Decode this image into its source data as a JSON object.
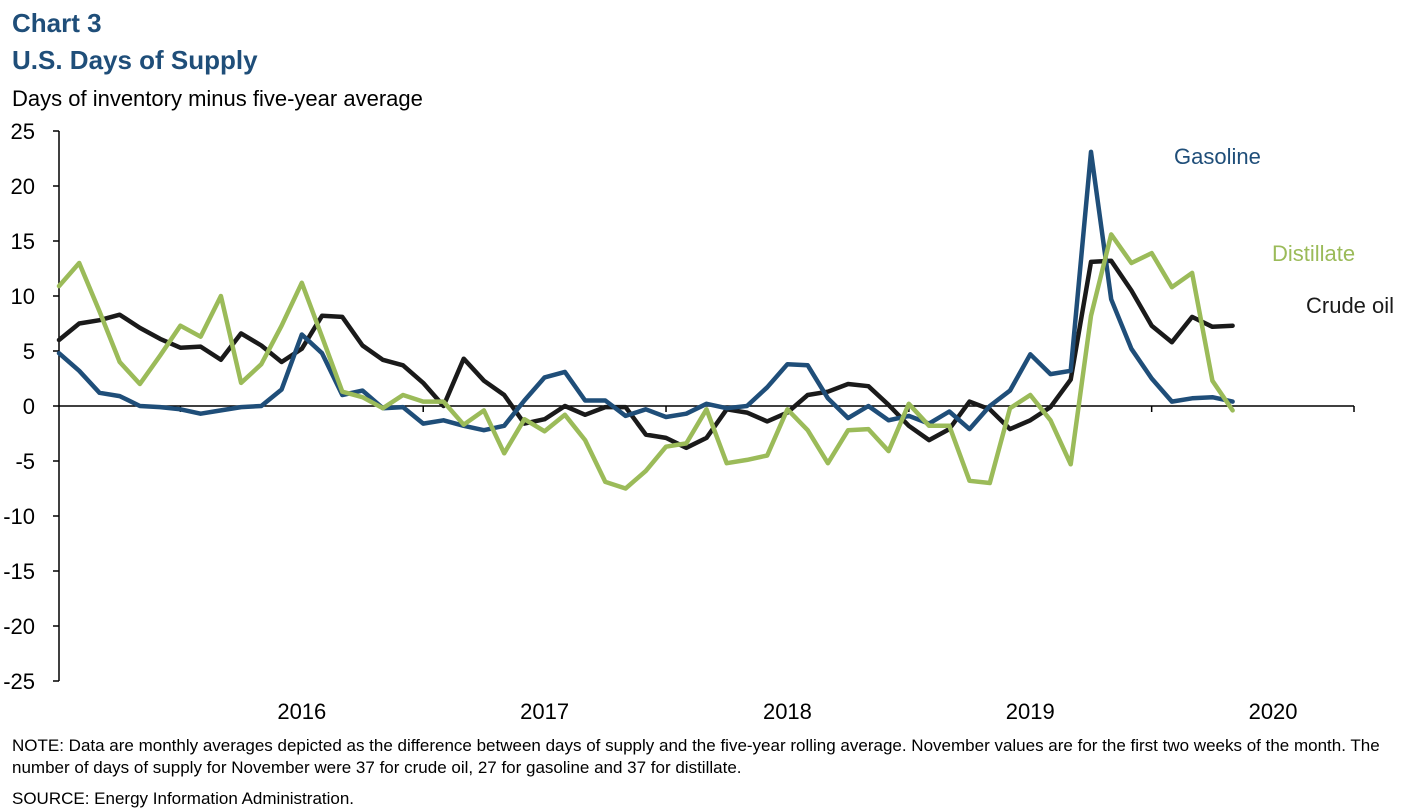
{
  "header": {
    "chart_number": "Chart 3",
    "title": "U.S. Days of Supply",
    "subtitle": "Days of inventory minus five-year average"
  },
  "footer": {
    "note": "NOTE: Data are monthly averages depicted as the difference between days of supply and the five-year rolling average. November values are for the first two weeks of the month. The number of days of supply for November were 37 for crude oil, 27 for gasoline and 37 for distillate.",
    "source": "SOURCE: Energy Information Administration."
  },
  "chart_data": {
    "type": "line",
    "title": "U.S. Days of Supply",
    "ylabel": "Days of inventory minus five-year average",
    "xlabel": "",
    "ylim": [
      -25,
      25
    ],
    "y_ticks": [
      25,
      20,
      15,
      10,
      5,
      0,
      -5,
      -10,
      -15,
      -20,
      -25
    ],
    "y_tick_labels": [
      "25",
      "20",
      "15",
      "10",
      "5",
      "0",
      "-5",
      "-10",
      "-15",
      "-20",
      "-25"
    ],
    "x_start": "2015-07",
    "x_end": "2020-11",
    "year_labels": [
      "2016",
      "2017",
      "2018",
      "2019",
      "2020"
    ],
    "grid": false,
    "series": [
      {
        "name": "Crude oil",
        "label": "Crude oil",
        "color": "#1a1a1a",
        "values": [
          6.0,
          7.5,
          7.8,
          8.3,
          7.1,
          6.1,
          5.3,
          5.4,
          4.2,
          6.6,
          5.5,
          4.0,
          5.2,
          8.2,
          8.1,
          5.5,
          4.2,
          3.7,
          2.1,
          0.0,
          4.3,
          2.3,
          1.0,
          -1.6,
          -1.2,
          0.0,
          -0.8,
          -0.1,
          -0.1,
          -2.6,
          -2.9,
          -3.8,
          -2.9,
          -0.3,
          -0.6,
          -1.4,
          -0.6,
          1.0,
          1.3,
          2.0,
          1.8,
          0.1,
          -1.8,
          -3.1,
          -2.1,
          0.4,
          -0.3,
          -2.1,
          -1.3,
          -0.1,
          2.4,
          13.1,
          13.2,
          10.5,
          7.3,
          5.8,
          8.1,
          7.2,
          7.3
        ]
      },
      {
        "name": "Gasoline",
        "label": "Gasoline",
        "color": "#1f4e79",
        "values": [
          4.8,
          3.2,
          1.2,
          0.9,
          0.0,
          -0.1,
          -0.3,
          -0.7,
          -0.4,
          -0.1,
          0.0,
          1.5,
          6.5,
          4.8,
          1.0,
          1.4,
          -0.2,
          -0.1,
          -1.6,
          -1.3,
          -1.8,
          -2.2,
          -1.8,
          0.5,
          2.6,
          3.1,
          0.5,
          0.5,
          -0.9,
          -0.3,
          -1.0,
          -0.7,
          0.2,
          -0.2,
          0.0,
          1.7,
          3.8,
          3.7,
          0.7,
          -1.1,
          0.0,
          -1.3,
          -0.9,
          -1.6,
          -0.5,
          -2.1,
          0.0,
          1.4,
          4.7,
          2.9,
          3.2,
          23.1,
          9.7,
          5.2,
          2.5,
          0.4,
          0.7,
          0.8,
          0.4
        ]
      },
      {
        "name": "Distillate",
        "label": "Distillate",
        "color": "#9bbb59",
        "values": [
          10.9,
          13.0,
          8.6,
          4.0,
          2.0,
          4.6,
          7.3,
          6.3,
          10.0,
          2.1,
          3.8,
          7.3,
          11.2,
          6.3,
          1.3,
          0.8,
          -0.2,
          1.0,
          0.4,
          0.4,
          -1.7,
          -0.4,
          -4.3,
          -1.2,
          -2.3,
          -0.8,
          -3.1,
          -6.9,
          -7.5,
          -5.9,
          -3.7,
          -3.4,
          -0.3,
          -5.2,
          -4.9,
          -4.5,
          -0.3,
          -2.2,
          -5.2,
          -2.2,
          -2.1,
          -4.1,
          0.2,
          -1.8,
          -1.8,
          -6.8,
          -7.0,
          -0.2,
          1.0,
          -1.3,
          -5.3,
          8.2,
          15.6,
          13.0,
          13.9,
          10.8,
          12.1,
          2.3,
          -0.4
        ]
      }
    ]
  }
}
